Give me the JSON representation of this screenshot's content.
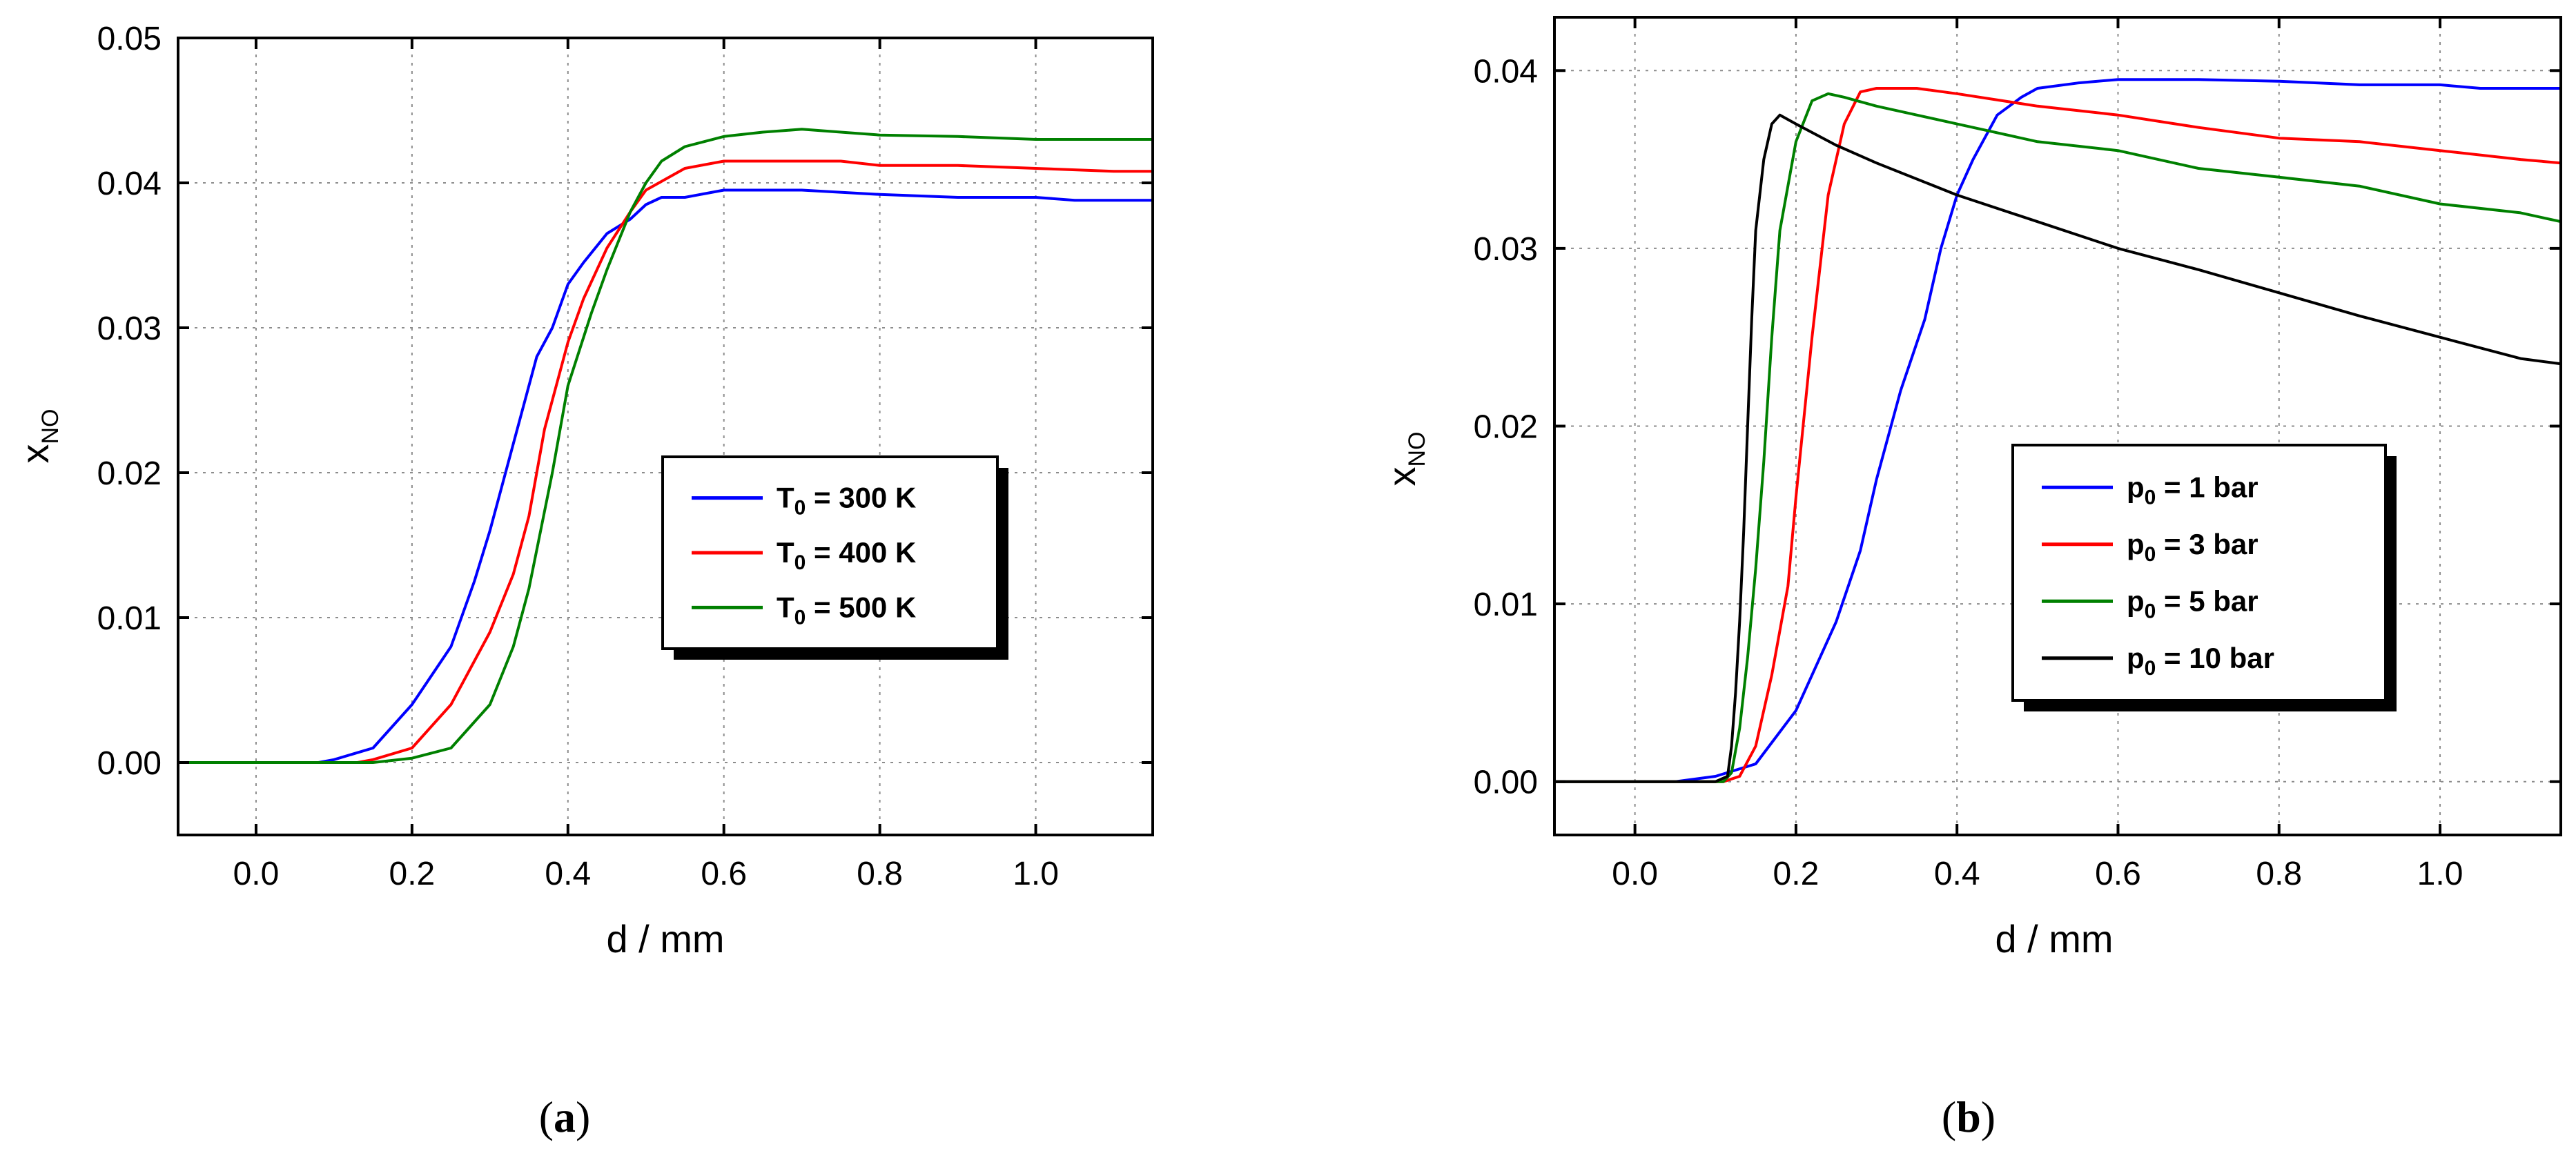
{
  "chart_data": [
    {
      "type": "line",
      "panel": "a",
      "caption": "(a)",
      "xlabel": "d / mm",
      "ylabel": "x",
      "ylabel_sub": "NO",
      "xlim": [
        -0.1,
        1.15
      ],
      "ylim": [
        -0.005,
        0.05
      ],
      "xticks": [
        0.0,
        0.2,
        0.4,
        0.6,
        0.8,
        1.0
      ],
      "xtick_labels": [
        "0.0",
        "0.2",
        "0.4",
        "0.6",
        "0.8",
        "1.0"
      ],
      "yticks": [
        0.0,
        0.01,
        0.02,
        0.03,
        0.04,
        0.05
      ],
      "ytick_labels": [
        "0.00",
        "0.01",
        "0.02",
        "0.03",
        "0.04",
        "0.05"
      ],
      "grid": true,
      "legend_position": "center-right",
      "series": [
        {
          "name": "T0 = 300 K",
          "label_main": "T",
          "label_sub": "0",
          "label_rest": " = 300 K",
          "color": "#0000ff",
          "x": [
            -0.1,
            0.08,
            0.1,
            0.15,
            0.2,
            0.25,
            0.28,
            0.3,
            0.33,
            0.36,
            0.38,
            0.4,
            0.42,
            0.45,
            0.48,
            0.5,
            0.52,
            0.55,
            0.6,
            0.65,
            0.7,
            0.8,
            0.9,
            1.0,
            1.05,
            1.15
          ],
          "y": [
            0.0,
            0.0,
            0.0002,
            0.001,
            0.004,
            0.008,
            0.0125,
            0.016,
            0.022,
            0.028,
            0.03,
            0.033,
            0.0345,
            0.0365,
            0.0375,
            0.0385,
            0.039,
            0.039,
            0.0395,
            0.0395,
            0.0395,
            0.0392,
            0.039,
            0.039,
            0.0388,
            0.0388
          ]
        },
        {
          "name": "T0 = 400 K",
          "label_main": "T",
          "label_sub": "0",
          "label_rest": " = 400 K",
          "color": "#ff0000",
          "x": [
            -0.1,
            0.13,
            0.15,
            0.2,
            0.25,
            0.3,
            0.33,
            0.35,
            0.37,
            0.4,
            0.42,
            0.45,
            0.48,
            0.5,
            0.55,
            0.6,
            0.65,
            0.75,
            0.8,
            0.9,
            1.0,
            1.1,
            1.15
          ],
          "y": [
            0.0,
            0.0,
            0.0002,
            0.001,
            0.004,
            0.009,
            0.013,
            0.017,
            0.023,
            0.029,
            0.032,
            0.0355,
            0.038,
            0.0395,
            0.041,
            0.0415,
            0.0415,
            0.0415,
            0.0412,
            0.0412,
            0.041,
            0.0408,
            0.0408
          ]
        },
        {
          "name": "T0 = 500 K",
          "label_main": "T",
          "label_sub": "0",
          "label_rest": " = 500 K",
          "color": "#008000",
          "x": [
            -0.1,
            0.15,
            0.2,
            0.25,
            0.3,
            0.33,
            0.35,
            0.38,
            0.4,
            0.43,
            0.45,
            0.48,
            0.5,
            0.52,
            0.55,
            0.6,
            0.65,
            0.7,
            0.75,
            0.8,
            0.9,
            1.0,
            1.15
          ],
          "y": [
            0.0,
            0.0,
            0.0003,
            0.001,
            0.004,
            0.008,
            0.012,
            0.02,
            0.026,
            0.031,
            0.034,
            0.038,
            0.04,
            0.0415,
            0.0425,
            0.0432,
            0.0435,
            0.0437,
            0.0435,
            0.0433,
            0.0432,
            0.043,
            0.043
          ]
        }
      ]
    },
    {
      "type": "line",
      "panel": "b",
      "caption": "(b)",
      "xlabel": "d / mm",
      "ylabel": "x",
      "ylabel_sub": "NO",
      "xlim": [
        -0.1,
        1.15
      ],
      "ylim": [
        -0.003,
        0.043
      ],
      "xticks": [
        0.0,
        0.2,
        0.4,
        0.6,
        0.8,
        1.0
      ],
      "xtick_labels": [
        "0.0",
        "0.2",
        "0.4",
        "0.6",
        "0.8",
        "1.0"
      ],
      "yticks": [
        0.0,
        0.01,
        0.02,
        0.03,
        0.04
      ],
      "ytick_labels": [
        "0.00",
        "0.01",
        "0.02",
        "0.03",
        "0.04"
      ],
      "grid": true,
      "legend_position": "center-right",
      "series": [
        {
          "name": "p0 = 1 bar",
          "label_main": "p",
          "label_sub": "0",
          "label_rest": " = 1 bar",
          "color": "#0000ff",
          "x": [
            -0.1,
            0.05,
            0.1,
            0.15,
            0.2,
            0.25,
            0.28,
            0.3,
            0.33,
            0.36,
            0.38,
            0.4,
            0.42,
            0.45,
            0.48,
            0.5,
            0.55,
            0.6,
            0.7,
            0.8,
            0.9,
            1.0,
            1.05,
            1.15
          ],
          "y": [
            0.0,
            0.0,
            0.0003,
            0.001,
            0.004,
            0.009,
            0.013,
            0.017,
            0.022,
            0.026,
            0.03,
            0.033,
            0.035,
            0.0375,
            0.0385,
            0.039,
            0.0393,
            0.0395,
            0.0395,
            0.0394,
            0.0392,
            0.0392,
            0.039,
            0.039
          ]
        },
        {
          "name": "p0 = 3 bar",
          "label_main": "p",
          "label_sub": "0",
          "label_rest": " = 3 bar",
          "color": "#ff0000",
          "x": [
            -0.1,
            0.11,
            0.13,
            0.15,
            0.17,
            0.19,
            0.2,
            0.22,
            0.24,
            0.26,
            0.28,
            0.3,
            0.35,
            0.4,
            0.5,
            0.6,
            0.7,
            0.8,
            0.9,
            1.0,
            1.1,
            1.15
          ],
          "y": [
            0.0,
            0.0,
            0.0003,
            0.002,
            0.006,
            0.011,
            0.016,
            0.025,
            0.033,
            0.037,
            0.0388,
            0.039,
            0.039,
            0.0387,
            0.038,
            0.0375,
            0.0368,
            0.0362,
            0.036,
            0.0355,
            0.035,
            0.0348
          ]
        },
        {
          "name": "p0 = 5 bar",
          "label_main": "p",
          "label_sub": "0",
          "label_rest": " = 5 bar",
          "color": "#008000",
          "x": [
            -0.1,
            0.11,
            0.12,
            0.13,
            0.14,
            0.15,
            0.16,
            0.17,
            0.18,
            0.2,
            0.22,
            0.24,
            0.26,
            0.3,
            0.35,
            0.4,
            0.5,
            0.6,
            0.7,
            0.8,
            0.9,
            1.0,
            1.1,
            1.15
          ],
          "y": [
            0.0,
            0.0,
            0.0005,
            0.003,
            0.007,
            0.012,
            0.018,
            0.025,
            0.031,
            0.036,
            0.0383,
            0.0387,
            0.0385,
            0.038,
            0.0375,
            0.037,
            0.036,
            0.0355,
            0.0345,
            0.034,
            0.0335,
            0.0325,
            0.032,
            0.0315
          ]
        },
        {
          "name": "p0 = 10 bar",
          "label_main": "p",
          "label_sub": "0",
          "label_rest": " = 10 bar",
          "color": "#000000",
          "x": [
            -0.1,
            0.1,
            0.115,
            0.12,
            0.125,
            0.13,
            0.135,
            0.14,
            0.145,
            0.15,
            0.16,
            0.17,
            0.18,
            0.2,
            0.25,
            0.3,
            0.4,
            0.5,
            0.6,
            0.7,
            0.8,
            0.9,
            1.0,
            1.1,
            1.15
          ],
          "y": [
            0.0,
            0.0,
            0.0003,
            0.002,
            0.005,
            0.009,
            0.014,
            0.02,
            0.026,
            0.031,
            0.035,
            0.037,
            0.0375,
            0.037,
            0.0358,
            0.0348,
            0.033,
            0.0315,
            0.03,
            0.0288,
            0.0275,
            0.0262,
            0.025,
            0.0238,
            0.0235
          ]
        }
      ]
    }
  ]
}
